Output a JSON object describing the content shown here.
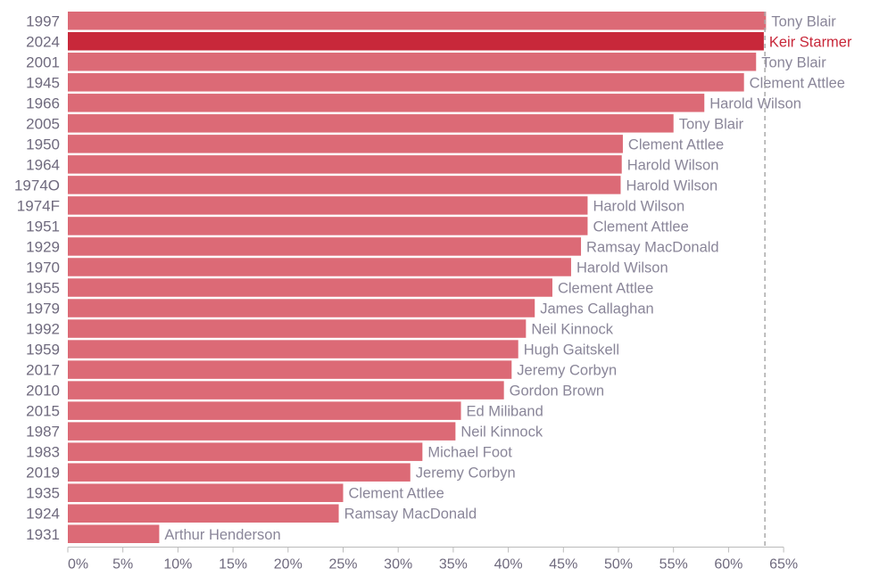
{
  "chart_data": {
    "type": "bar",
    "orientation": "horizontal",
    "title": "",
    "xlabel": "",
    "ylabel": "",
    "xlim": [
      0,
      65
    ],
    "x_ticks": [
      0,
      5,
      10,
      15,
      20,
      25,
      30,
      35,
      40,
      45,
      50,
      55,
      60,
      65
    ],
    "x_tick_labels": [
      "0%",
      "5%",
      "10%",
      "15%",
      "20%",
      "25%",
      "30%",
      "35%",
      "40%",
      "45%",
      "50%",
      "55%",
      "60%",
      "65%"
    ],
    "reference_line": 63.3,
    "grid": false,
    "colors": {
      "bar": "#dc6a76",
      "highlight": "#c8283a",
      "label": "#8a8699",
      "axis_text": "#6f6a7e",
      "reference": "#aaaaaa"
    },
    "highlight_category": "2024",
    "categories": [
      "1997",
      "2024",
      "2001",
      "1945",
      "1966",
      "2005",
      "1950",
      "1964",
      "1974O",
      "1974F",
      "1951",
      "1929",
      "1970",
      "1955",
      "1979",
      "1992",
      "1959",
      "2017",
      "2010",
      "2015",
      "1987",
      "1983",
      "2019",
      "1935",
      "1924",
      "1931"
    ],
    "leaders": [
      "Tony Blair",
      "Keir Starmer",
      "Tony Blair",
      "Clement Attlee",
      "Harold Wilson",
      "Tony Blair",
      "Clement Attlee",
      "Harold Wilson",
      "Harold Wilson",
      "Harold Wilson",
      "Clement Attlee",
      "Ramsay MacDonald",
      "Harold Wilson",
      "Clement Attlee",
      "James Callaghan",
      "Neil Kinnock",
      "Hugh Gaitskell",
      "Jeremy Corbyn",
      "Gordon Brown",
      "Ed Miliband",
      "Neil Kinnock",
      "Michael Foot",
      "Jeremy Corbyn",
      "Clement Attlee",
      "Ramsay MacDonald",
      "Arthur Henderson"
    ],
    "values": [
      63.4,
      63.2,
      62.5,
      61.4,
      57.8,
      55.0,
      50.4,
      50.3,
      50.2,
      47.2,
      47.2,
      46.6,
      45.7,
      44.0,
      42.4,
      41.6,
      40.9,
      40.3,
      39.6,
      35.7,
      35.2,
      32.2,
      31.1,
      25.0,
      24.6,
      8.3
    ]
  }
}
